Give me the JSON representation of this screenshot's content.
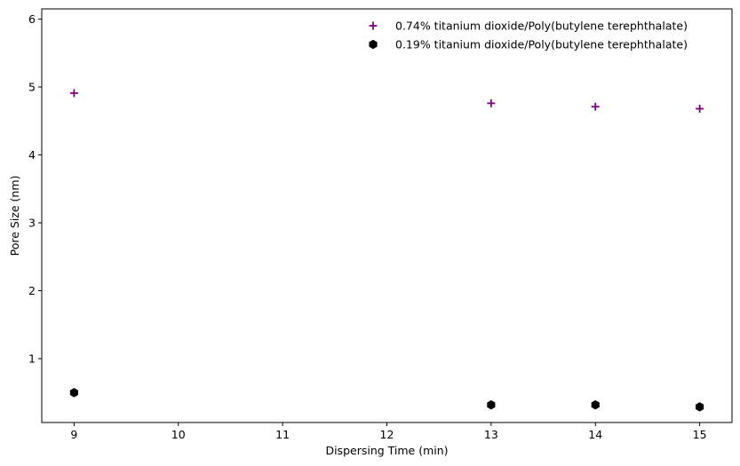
{
  "chart_data": {
    "type": "scatter",
    "title": "",
    "xlabel": "Dispersing Time (min)",
    "ylabel": "Pore Size (nm)",
    "xlim": [
      8.69,
      15.31
    ],
    "ylim": [
      0.06,
      6.15
    ],
    "xticks": [
      9,
      10,
      11,
      12,
      13,
      14,
      15
    ],
    "yticks": [
      1,
      2,
      3,
      4,
      5,
      6
    ],
    "grid": false,
    "legend_position": "top-right",
    "series": [
      {
        "name": "0.74% titanium dioxide/Poly(butylene terephthalate)",
        "marker": "plus",
        "color": "#800080",
        "x": [
          9,
          13,
          14,
          15
        ],
        "y": [
          4.91,
          4.76,
          4.71,
          4.68
        ]
      },
      {
        "name": "0.19% titanium dioxide/Poly(butylene terephthalate)",
        "marker": "hexagon",
        "color": "#000000",
        "x": [
          9,
          13,
          14,
          15
        ],
        "y": [
          0.5,
          0.32,
          0.32,
          0.29
        ]
      }
    ]
  }
}
